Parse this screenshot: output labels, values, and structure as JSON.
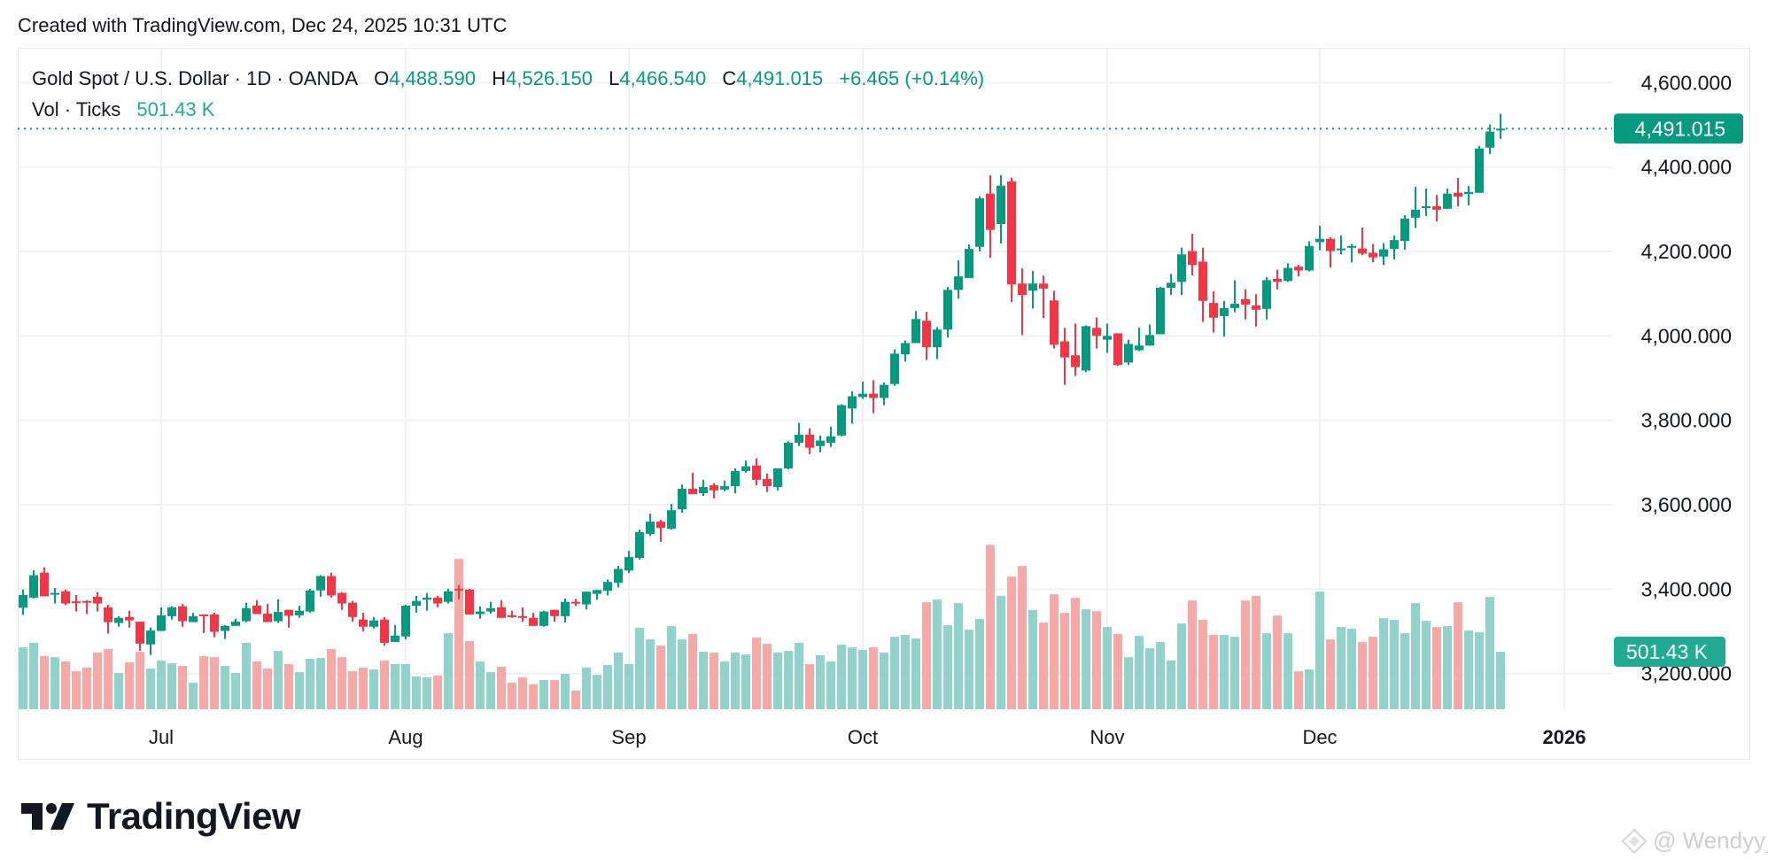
{
  "header": {
    "created": "Created with TradingView.com, Dec 24, 2025 10:31 UTC"
  },
  "legend": {
    "symbol": "Gold Spot / U.S. Dollar · 1D · OANDA",
    "o_label": "O",
    "o": "4,488.590",
    "h_label": "H",
    "h": "4,526.150",
    "l_label": "L",
    "l": "4,466.540",
    "c_label": "C",
    "c": "4,491.015",
    "change": "+6.465 (+0.14%)",
    "vol_label": "Vol · Ticks",
    "vol": "501.43 K"
  },
  "price_tag": "4,491.015",
  "volume_tag": "501.43 K",
  "logo": {
    "text": "TradingView"
  },
  "watermark": "@ Wendyy_",
  "colors": {
    "up": "#089981",
    "down": "#f23645",
    "vol_up": "#92d2cc",
    "vol_down": "#f7a9a7",
    "grid": "#f0f1f3",
    "last_price": "#089981",
    "vol_tag": "#22ab94"
  },
  "chart_data": {
    "type": "candlestick",
    "title": "Gold Spot / U.S. Dollar · 1D · OANDA",
    "ylim": [
      3130,
      4640
    ],
    "grid": true,
    "last_price": 4491.015,
    "y_ticks": [
      {
        "value": 4600,
        "label": "4,600.000"
      },
      {
        "value": 4400,
        "label": "4,400.000"
      },
      {
        "value": 4200,
        "label": "4,200.000"
      },
      {
        "value": 4000,
        "label": "4,000.000"
      },
      {
        "value": 3800,
        "label": "3,800.000"
      },
      {
        "value": 3600,
        "label": "3,600.000"
      },
      {
        "value": 3400,
        "label": "3,400.000"
      },
      {
        "value": 3200,
        "label": "3,200.000"
      }
    ],
    "x_ticks": [
      {
        "label": "Jul",
        "date": "2025-07-01"
      },
      {
        "label": "Aug",
        "date": "2025-08-01"
      },
      {
        "label": "Sep",
        "date": "2025-09-01"
      },
      {
        "label": "Oct",
        "date": "2025-10-01"
      },
      {
        "label": "Nov",
        "date": "2025-11-03"
      },
      {
        "label": "Dec",
        "date": "2025-12-01"
      },
      {
        "label": "2026",
        "date": "2026-01-01",
        "bold": true
      }
    ],
    "columns": [
      "date",
      "open",
      "high",
      "low",
      "close",
      "volume_k"
    ],
    "candles": [
      [
        "2025-06-12",
        3356,
        3399,
        3339,
        3386,
        539
      ],
      [
        "2025-06-13",
        3380,
        3445,
        3378,
        3433,
        578
      ],
      [
        "2025-06-16",
        3439,
        3452,
        3383,
        3383,
        462
      ],
      [
        "2025-06-17",
        3388,
        3403,
        3366,
        3391,
        454
      ],
      [
        "2025-06-18",
        3395,
        3399,
        3362,
        3366,
        416
      ],
      [
        "2025-06-19",
        3371,
        3386,
        3347,
        3369,
        331
      ],
      [
        "2025-06-20",
        3372,
        3374,
        3341,
        3369,
        362
      ],
      [
        "2025-06-23",
        3382,
        3393,
        3347,
        3366,
        493
      ],
      [
        "2025-06-24",
        3357,
        3363,
        3295,
        3322,
        524
      ],
      [
        "2025-06-25",
        3320,
        3336,
        3311,
        3332,
        316
      ],
      [
        "2025-06-26",
        3334,
        3349,
        3309,
        3326,
        408
      ],
      [
        "2025-06-27",
        3323,
        3323,
        3254,
        3271,
        500
      ],
      [
        "2025-06-30",
        3269,
        3309,
        3244,
        3302,
        354
      ],
      [
        "2025-07-01",
        3301,
        3357,
        3301,
        3338,
        424
      ],
      [
        "2025-07-02",
        3336,
        3359,
        3328,
        3357,
        400
      ],
      [
        "2025-07-03",
        3359,
        3365,
        3311,
        3324,
        377
      ],
      [
        "2025-07-04",
        3322,
        3344,
        3322,
        3336,
        231
      ],
      [
        "2025-07-07",
        3340,
        3340,
        3296,
        3338,
        462
      ],
      [
        "2025-07-08",
        3340,
        3344,
        3286,
        3299,
        454
      ],
      [
        "2025-07-09",
        3301,
        3315,
        3282,
        3313,
        377
      ],
      [
        "2025-07-10",
        3313,
        3330,
        3313,
        3323,
        316
      ],
      [
        "2025-07-11",
        3324,
        3368,
        3322,
        3355,
        578
      ],
      [
        "2025-07-14",
        3361,
        3374,
        3341,
        3341,
        416
      ],
      [
        "2025-07-15",
        3342,
        3365,
        3322,
        3322,
        354
      ],
      [
        "2025-07-16",
        3324,
        3376,
        3320,
        3346,
        508
      ],
      [
        "2025-07-17",
        3351,
        3351,
        3309,
        3337,
        393
      ],
      [
        "2025-07-18",
        3338,
        3361,
        3332,
        3349,
        323
      ],
      [
        "2025-07-21",
        3347,
        3401,
        3344,
        3397,
        439
      ],
      [
        "2025-07-22",
        3397,
        3433,
        3382,
        3431,
        447
      ],
      [
        "2025-07-23",
        3431,
        3439,
        3380,
        3385,
        524
      ],
      [
        "2025-07-24",
        3391,
        3393,
        3351,
        3366,
        454
      ],
      [
        "2025-07-25",
        3368,
        3372,
        3323,
        3334,
        331
      ],
      [
        "2025-07-28",
        3328,
        3344,
        3300,
        3311,
        362
      ],
      [
        "2025-07-29",
        3311,
        3334,
        3307,
        3326,
        347
      ],
      [
        "2025-07-30",
        3328,
        3334,
        3266,
        3273,
        424
      ],
      [
        "2025-07-31",
        3275,
        3315,
        3275,
        3290,
        393
      ],
      [
        "2025-08-01",
        3288,
        3363,
        3281,
        3361,
        393
      ],
      [
        "2025-08-04",
        3361,
        3384,
        3344,
        3372,
        285
      ],
      [
        "2025-08-05",
        3375,
        3391,
        3349,
        3380,
        277
      ],
      [
        "2025-08-06",
        3380,
        3384,
        3357,
        3366,
        293
      ],
      [
        "2025-08-07",
        3370,
        3401,
        3366,
        3395,
        662
      ],
      [
        "2025-08-08",
        3401,
        3410,
        3376,
        3399,
        1309
      ],
      [
        "2025-08-11",
        3399,
        3401,
        3340,
        3340,
        593
      ],
      [
        "2025-08-12",
        3341,
        3359,
        3330,
        3347,
        416
      ],
      [
        "2025-08-13",
        3347,
        3370,
        3342,
        3355,
        323
      ],
      [
        "2025-08-14",
        3357,
        3374,
        3332,
        3332,
        370
      ],
      [
        "2025-08-15",
        3338,
        3349,
        3332,
        3334,
        231
      ],
      [
        "2025-08-18",
        3336,
        3357,
        3323,
        3332,
        277
      ],
      [
        "2025-08-19",
        3332,
        3344,
        3313,
        3313,
        216
      ],
      [
        "2025-08-20",
        3313,
        3349,
        3311,
        3347,
        254
      ],
      [
        "2025-08-21",
        3351,
        3351,
        3323,
        3336,
        254
      ],
      [
        "2025-08-22",
        3336,
        3378,
        3321,
        3370,
        308
      ],
      [
        "2025-08-25",
        3370,
        3377,
        3360,
        3367,
        162
      ],
      [
        "2025-08-26",
        3364,
        3394,
        3352,
        3394,
        362
      ],
      [
        "2025-08-27",
        3389,
        3398,
        3375,
        3398,
        300
      ],
      [
        "2025-08-28",
        3396,
        3423,
        3385,
        3417,
        385
      ],
      [
        "2025-08-29",
        3415,
        3455,
        3404,
        3448,
        493
      ],
      [
        "2025-09-01",
        3444,
        3491,
        3438,
        3476,
        393
      ],
      [
        "2025-09-02",
        3474,
        3541,
        3470,
        3535,
        708
      ],
      [
        "2025-09-03",
        3531,
        3579,
        3526,
        3560,
        608
      ],
      [
        "2025-09-04",
        3560,
        3564,
        3512,
        3545,
        554
      ],
      [
        "2025-09-05",
        3543,
        3602,
        3541,
        3587,
        724
      ],
      [
        "2025-09-08",
        3589,
        3648,
        3581,
        3638,
        608
      ],
      [
        "2025-09-09",
        3638,
        3676,
        3625,
        3625,
        655
      ],
      [
        "2025-09-10",
        3627,
        3659,
        3621,
        3642,
        501
      ],
      [
        "2025-09-11",
        3646,
        3651,
        3615,
        3634,
        493
      ],
      [
        "2025-09-12",
        3636,
        3657,
        3632,
        3644,
        416
      ],
      [
        "2025-09-15",
        3644,
        3686,
        3627,
        3680,
        493
      ],
      [
        "2025-09-16",
        3680,
        3705,
        3676,
        3691,
        477
      ],
      [
        "2025-09-17",
        3693,
        3710,
        3646,
        3659,
        624
      ],
      [
        "2025-09-18",
        3661,
        3674,
        3630,
        3644,
        570
      ],
      [
        "2025-09-19",
        3642,
        3686,
        3634,
        3686,
        493
      ],
      [
        "2025-09-22",
        3686,
        3750,
        3684,
        3747,
        508
      ],
      [
        "2025-09-23",
        3747,
        3794,
        3739,
        3766,
        578
      ],
      [
        "2025-09-24",
        3766,
        3781,
        3720,
        3735,
        393
      ],
      [
        "2025-09-25",
        3739,
        3764,
        3724,
        3752,
        470
      ],
      [
        "2025-09-26",
        3747,
        3785,
        3737,
        3762,
        416
      ],
      [
        "2025-09-29",
        3764,
        3838,
        3762,
        3836,
        562
      ],
      [
        "2025-09-30",
        3828,
        3869,
        3792,
        3857,
        539
      ],
      [
        "2025-10-01",
        3855,
        3892,
        3851,
        3863,
        516
      ],
      [
        "2025-10-02",
        3863,
        3895,
        3817,
        3853,
        539
      ],
      [
        "2025-10-03",
        3853,
        3890,
        3836,
        3884,
        493
      ],
      [
        "2025-10-06",
        3886,
        3968,
        3882,
        3958,
        631
      ],
      [
        "2025-10-07",
        3956,
        3989,
        3939,
        3983,
        647
      ],
      [
        "2025-10-08",
        3983,
        4059,
        3983,
        4040,
        616
      ],
      [
        "2025-10-09",
        4036,
        4057,
        3943,
        3973,
        932
      ],
      [
        "2025-10-10",
        3973,
        4021,
        3945,
        4015,
        955
      ],
      [
        "2025-10-13",
        4015,
        4116,
        3996,
        4109,
        732
      ],
      [
        "2025-10-14",
        4109,
        4179,
        4088,
        4141,
        924
      ],
      [
        "2025-10-15",
        4137,
        4217,
        4137,
        4206,
        693
      ],
      [
        "2025-10-16",
        4211,
        4331,
        4200,
        4326,
        786
      ],
      [
        "2025-10-17",
        4337,
        4381,
        4185,
        4251,
        1432
      ],
      [
        "2025-10-20",
        4265,
        4381,
        4219,
        4356,
        986
      ],
      [
        "2025-10-21",
        4366,
        4375,
        4080,
        4122,
        1155
      ],
      [
        "2025-10-22",
        4124,
        4160,
        4002,
        4097,
        1248
      ],
      [
        "2025-10-23",
        4107,
        4154,
        4065,
        4124,
        863
      ],
      [
        "2025-10-24",
        4124,
        4143,
        4042,
        4112,
        755
      ],
      [
        "2025-10-27",
        4084,
        4107,
        3970,
        3979,
        1001
      ],
      [
        "2025-10-28",
        3987,
        4019,
        3884,
        3949,
        839
      ],
      [
        "2025-10-29",
        3954,
        4029,
        3905,
        3926,
        970
      ],
      [
        "2025-10-30",
        3918,
        4025,
        3914,
        4023,
        870
      ],
      [
        "2025-10-31",
        4019,
        4044,
        3970,
        4000,
        855
      ],
      [
        "2025-11-03",
        3991,
        4029,
        3960,
        4000,
        716
      ],
      [
        "2025-11-04",
        4006,
        4006,
        3929,
        3931,
        655
      ],
      [
        "2025-11-05",
        3937,
        3991,
        3931,
        3981,
        454
      ],
      [
        "2025-11-06",
        3966,
        4020,
        3964,
        3977,
        639
      ],
      [
        "2025-11-07",
        3977,
        4027,
        3977,
        4002,
        531
      ],
      [
        "2025-11-10",
        4004,
        4116,
        4004,
        4114,
        585
      ],
      [
        "2025-11-11",
        4114,
        4147,
        4097,
        4126,
        424
      ],
      [
        "2025-11-12",
        4128,
        4209,
        4097,
        4193,
        747
      ],
      [
        "2025-11-13",
        4201,
        4242,
        4143,
        4168,
        947
      ],
      [
        "2025-11-14",
        4176,
        4209,
        4033,
        4083,
        778
      ],
      [
        "2025-11-17",
        4078,
        4106,
        4008,
        4043,
        647
      ],
      [
        "2025-11-18",
        4047,
        4083,
        3998,
        4066,
        647
      ],
      [
        "2025-11-19",
        4066,
        4132,
        4056,
        4076,
        631
      ],
      [
        "2025-11-20",
        4087,
        4110,
        4039,
        4074,
        947
      ],
      [
        "2025-11-21",
        4072,
        4099,
        4022,
        4062,
        986
      ],
      [
        "2025-11-24",
        4064,
        4139,
        4039,
        4132,
        662
      ],
      [
        "2025-11-25",
        4135,
        4157,
        4110,
        4128,
        816
      ],
      [
        "2025-11-26",
        4130,
        4172,
        4128,
        4161,
        662
      ],
      [
        "2025-11-27",
        4164,
        4168,
        4141,
        4155,
        331
      ],
      [
        "2025-11-28",
        4155,
        4224,
        4153,
        4213,
        347
      ],
      [
        "2025-12-01",
        4222,
        4261,
        4203,
        4230,
        1024
      ],
      [
        "2025-12-02",
        4230,
        4234,
        4162,
        4201,
        608
      ],
      [
        "2025-12-03",
        4203,
        4238,
        4193,
        4207,
        716
      ],
      [
        "2025-12-04",
        4209,
        4218,
        4174,
        4213,
        701
      ],
      [
        "2025-12-05",
        4207,
        4257,
        4191,
        4195,
        585
      ],
      [
        "2025-12-08",
        4197,
        4218,
        4174,
        4186,
        631
      ],
      [
        "2025-12-09",
        4188,
        4220,
        4168,
        4205,
        793
      ],
      [
        "2025-12-10",
        4206,
        4238,
        4181,
        4227,
        778
      ],
      [
        "2025-12-11",
        4225,
        4286,
        4204,
        4278,
        662
      ],
      [
        "2025-12-12",
        4280,
        4353,
        4256,
        4299,
        924
      ],
      [
        "2025-12-15",
        4303,
        4349,
        4284,
        4307,
        770
      ],
      [
        "2025-12-16",
        4307,
        4334,
        4271,
        4299,
        716
      ],
      [
        "2025-12-17",
        4301,
        4349,
        4301,
        4337,
        724
      ],
      [
        "2025-12-18",
        4339,
        4374,
        4307,
        4330,
        932
      ],
      [
        "2025-12-19",
        4336,
        4355,
        4309,
        4341,
        685
      ],
      [
        "2025-12-22",
        4339,
        4450,
        4339,
        4444,
        670
      ],
      [
        "2025-12-23",
        4446,
        4501,
        4431,
        4484,
        978
      ],
      [
        "2025-12-24",
        4488.59,
        4526.15,
        4466.54,
        4491.015,
        501.43
      ]
    ]
  }
}
